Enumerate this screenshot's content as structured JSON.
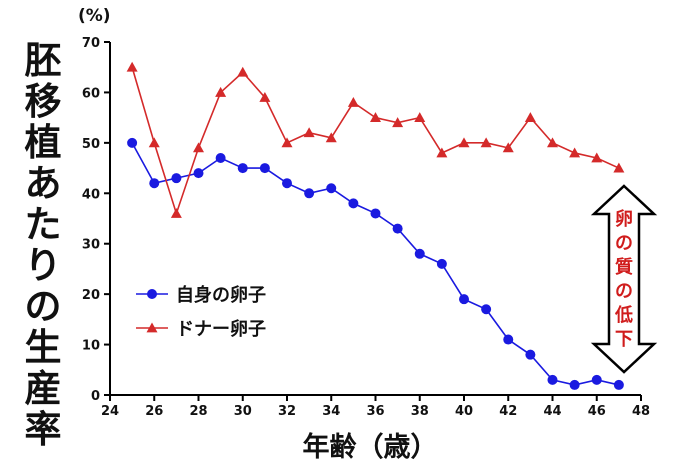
{
  "chart_data": {
    "type": "line",
    "ylabel": "胚移植あたりの生産率",
    "yunit": "(%)",
    "xlabel": "年齢（歳）",
    "xlim": [
      24,
      48
    ],
    "ylim": [
      0,
      70
    ],
    "xticks": [
      24,
      26,
      28,
      30,
      32,
      34,
      36,
      38,
      40,
      42,
      44,
      46,
      48
    ],
    "yticks": [
      0,
      10,
      20,
      30,
      40,
      50,
      60,
      70
    ],
    "grid": false,
    "legend_placement": "lower-left",
    "series": [
      {
        "name": "自身の卵子",
        "color": "#1a1ae0",
        "marker": "circle",
        "x": [
          25,
          26,
          27,
          28,
          29,
          30,
          31,
          32,
          33,
          34,
          35,
          36,
          37,
          38,
          39,
          40,
          41,
          42,
          43,
          44,
          45,
          46,
          47
        ],
        "y": [
          50,
          42,
          43,
          44,
          47,
          45,
          45,
          42,
          40,
          41,
          38,
          36,
          33,
          28,
          26,
          19,
          17,
          11,
          8,
          3,
          2,
          3,
          2
        ]
      },
      {
        "name": "ドナー卵子",
        "color": "#d42a2a",
        "marker": "triangle",
        "x": [
          25,
          26,
          27,
          28,
          29,
          30,
          31,
          32,
          33,
          34,
          35,
          36,
          37,
          38,
          39,
          40,
          41,
          42,
          43,
          44,
          45,
          46,
          47
        ],
        "y": [
          65,
          50,
          36,
          49,
          60,
          64,
          59,
          50,
          52,
          51,
          58,
          55,
          54,
          55,
          48,
          50,
          50,
          49,
          55,
          50,
          48,
          47,
          45
        ]
      }
    ],
    "annotation": {
      "text": "卵の質の低下",
      "color": "#d01c1c",
      "x": 47,
      "y_range": [
        2,
        45
      ]
    }
  }
}
